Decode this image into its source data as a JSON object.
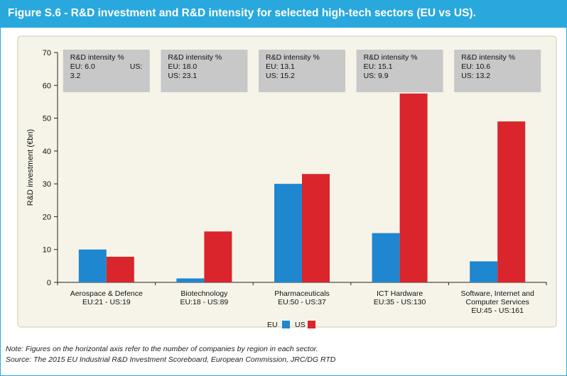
{
  "figure": {
    "title": "Figure S.6 - R&D investment and R&D intensity for selected high-tech sectors (EU vs US).",
    "note": "Note: Figures on the horizontal axis refer to the number of companies by region in each sector.",
    "source": "Source: The 2015 EU Industrial R&D Investment Scoreboard, European Commission, JRC/DG RTD"
  },
  "colors": {
    "eu": "#1f87cf",
    "us": "#d9252b",
    "header": "#29a8de",
    "plot_background": "#f6f4e9",
    "intensity_box": "#c8c8c8"
  },
  "chart_data": {
    "type": "bar",
    "ylabel": "R&D investment (€bn)",
    "xlabel": "",
    "ylim": [
      0,
      70
    ],
    "yticks": [
      0,
      10,
      20,
      30,
      40,
      50,
      60,
      70
    ],
    "grid": false,
    "legend_position": "bottom-center",
    "categories": [
      [
        "Aerospace & Defence",
        "EU:21 - US:19"
      ],
      [
        "Biotechnology",
        "EU:18 - US:89"
      ],
      [
        "Pharmaceuticals",
        "EU:50 - US:37"
      ],
      [
        "ICT Hardware",
        "EU:35 - US:130"
      ],
      [
        "Software, Internet and",
        "Computer Services",
        "EU:45 - US:161"
      ]
    ],
    "series": [
      {
        "name": "EU",
        "values": [
          10,
          1.2,
          30,
          15,
          6.4
        ]
      },
      {
        "name": "US",
        "values": [
          7.8,
          15.5,
          33,
          57.5,
          49
        ]
      }
    ],
    "annotations": [
      {
        "heading": "R&D intensity %",
        "eu": "EU: 6.0",
        "us": "US:",
        "us_value": "3.2"
      },
      {
        "heading": "R&D intensity %",
        "eu": "EU: 18.0",
        "us": "US: 23.1"
      },
      {
        "heading": "R&D intensity %",
        "eu": "EU: 13.1",
        "us": "US: 15.2"
      },
      {
        "heading": "R&D intensity %",
        "eu": "EU: 15.1",
        "us": "US: 9.9"
      },
      {
        "heading": "R&D intensity %",
        "eu": "EU: 10.6",
        "us": "US: 13.2"
      }
    ]
  }
}
